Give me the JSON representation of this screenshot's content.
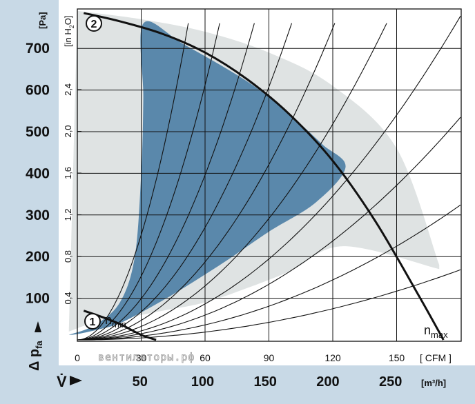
{
  "chart_data": {
    "type": "line",
    "title": "",
    "left_strip_color": "#c8d9e6",
    "bottom_strip_color": "#c8d9e6",
    "plot_background": "#ffffff",
    "operating_area_color": "#dfe3e3",
    "recommended_area_color": "#5a88ab",
    "y_axis": {
      "label": "Δ p",
      "label_subscript": "fa",
      "unit": "[Pa]",
      "lim": [
        0,
        800
      ],
      "ticks": [
        100,
        200,
        300,
        400,
        500,
        600,
        700
      ]
    },
    "y_axis_secondary": {
      "unit": "[in H",
      "unit_subscript": "2",
      "unit_suffix": "O]",
      "ticks": [
        "0,4",
        "0,8",
        "1,2",
        "1,6",
        "2,0",
        "2,4"
      ],
      "tick_values": [
        0.4,
        0.8,
        1.2,
        1.6,
        2.0,
        2.4
      ]
    },
    "x_axis": {
      "label": "V̇",
      "unit": "[ CFM ]",
      "lim": [
        0,
        170
      ],
      "ticks": [
        "0",
        "30",
        "60",
        "90",
        "120",
        "150"
      ],
      "tick_values": [
        0,
        30,
        60,
        90,
        120,
        150
      ]
    },
    "x_axis_secondary": {
      "unit": "[m³/h]",
      "ticks": [
        "50",
        "100",
        "150",
        "200",
        "250"
      ],
      "tick_values": [
        50,
        100,
        150,
        200,
        250
      ]
    },
    "watermark": "вентиляторы.рф",
    "operating_area_top": [
      [
        0,
        790
      ],
      [
        30,
        770
      ],
      [
        60,
        740
      ],
      [
        90,
        690
      ],
      [
        120,
        610
      ],
      [
        150,
        460
      ],
      [
        170,
        180
      ]
    ],
    "operating_area_bottom": [
      [
        -4,
        20
      ],
      [
        10,
        45
      ],
      [
        25,
        55
      ],
      [
        32,
        62
      ],
      [
        40,
        70
      ],
      [
        60,
        90
      ],
      [
        80,
        125
      ],
      [
        100,
        165
      ],
      [
        125,
        225
      ],
      [
        170,
        170
      ]
    ],
    "recommended_area": [
      [
        -4,
        12
      ],
      [
        8,
        35
      ],
      [
        20,
        90
      ],
      [
        27,
        200
      ],
      [
        30,
        400
      ],
      [
        31,
        580
      ],
      [
        31,
        760
      ],
      [
        50,
        710
      ],
      [
        80,
        620
      ],
      [
        100,
        540
      ],
      [
        115,
        470
      ],
      [
        126,
        415
      ],
      [
        112,
        330
      ],
      [
        90,
        260
      ],
      [
        70,
        190
      ],
      [
        50,
        125
      ],
      [
        35,
        80
      ],
      [
        20,
        40
      ],
      [
        10,
        25
      ],
      [
        0,
        14
      ]
    ],
    "series": [
      {
        "name": "2",
        "annotation": "n",
        "annotation_subscript": "max",
        "x": [
          3,
          20,
          40,
          60,
          80,
          100,
          120,
          140,
          160,
          172
        ],
        "y": [
          785,
          765,
          735,
          690,
          625,
          540,
          430,
          285,
          110,
          0
        ]
      },
      {
        "name": "1",
        "annotation": "n",
        "annotation_subscript": "min",
        "x": [
          3,
          10,
          20,
          30,
          37
        ],
        "y": [
          70,
          58,
          38,
          12,
          0
        ]
      }
    ],
    "system_curves_k": [
      0.0052,
      0.01,
      0.0165,
      0.024,
      0.036,
      0.052,
      0.075,
      0.11,
      0.17,
      0.28
    ],
    "grid": true
  }
}
